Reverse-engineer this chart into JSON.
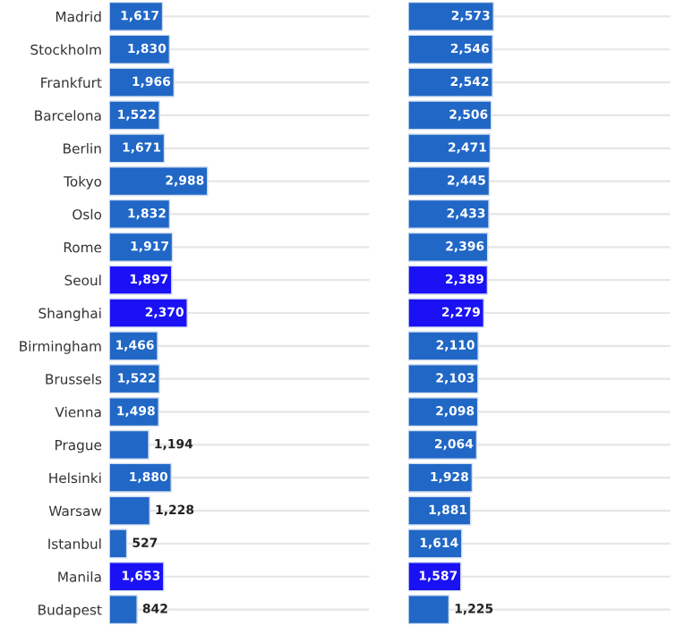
{
  "chart_data": [
    {
      "type": "bar",
      "orientation": "horizontal",
      "categories": [
        "Madrid",
        "Stockholm",
        "Frankfurt",
        "Barcelona",
        "Berlin",
        "Tokyo",
        "Oslo",
        "Rome",
        "Seoul",
        "Shanghai",
        "Birmingham",
        "Brussels",
        "Vienna",
        "Prague",
        "Helsinki",
        "Warsaw",
        "Istanbul",
        "Manila",
        "Budapest"
      ],
      "values": [
        1617,
        1830,
        1966,
        1522,
        1671,
        2988,
        1832,
        1917,
        1897,
        2370,
        1466,
        1522,
        1498,
        1194,
        1880,
        1228,
        527,
        1653,
        842
      ],
      "value_labels": [
        "1,617",
        "1,830",
        "1,966",
        "1,522",
        "1,671",
        "2,988",
        "1,832",
        "1,917",
        "1,897",
        "2,370",
        "1,466",
        "1,522",
        "1,498",
        "1,194",
        "1,880",
        "1,228",
        "527",
        "1,653",
        "842"
      ],
      "colors": [
        "#2067c6",
        "#2067c6",
        "#2067c6",
        "#2067c6",
        "#2067c6",
        "#2067c6",
        "#2067c6",
        "#2067c6",
        "#1a12f5",
        "#1a12f5",
        "#2067c6",
        "#2067c6",
        "#2067c6",
        "#2067c6",
        "#2067c6",
        "#2067c6",
        "#2067c6",
        "#1a12f5",
        "#2067c6"
      ],
      "tick_labels": "y",
      "grid": "y"
    },
    {
      "type": "bar",
      "orientation": "horizontal",
      "categories": [
        null,
        null,
        null,
        null,
        null,
        null,
        null,
        null,
        null,
        null,
        null,
        null,
        null,
        null,
        null,
        null,
        null,
        null,
        null
      ],
      "values": [
        2573,
        2546,
        2542,
        2506,
        2471,
        2445,
        2433,
        2396,
        2389,
        2279,
        2110,
        2103,
        2098,
        2064,
        1928,
        1881,
        1614,
        1587,
        1225
      ],
      "value_labels": [
        "2,573",
        "2,546",
        "2,542",
        "2,506",
        "2,471",
        "2,445",
        "2,433",
        "2,396",
        "2,389",
        "2,279",
        "2,110",
        "2,103",
        "2,098",
        "2,064",
        "1,928",
        "1,881",
        "1,614",
        "1,587",
        "1,225"
      ],
      "colors": [
        "#2067c6",
        "#2067c6",
        "#2067c6",
        "#2067c6",
        "#2067c6",
        "#2067c6",
        "#2067c6",
        "#2067c6",
        "#1a12f5",
        "#1a12f5",
        "#2067c6",
        "#2067c6",
        "#2067c6",
        "#2067c6",
        "#2067c6",
        "#2067c6",
        "#2067c6",
        "#1a12f5",
        "#2067c6"
      ],
      "tick_labels": false,
      "grid": "y"
    }
  ]
}
